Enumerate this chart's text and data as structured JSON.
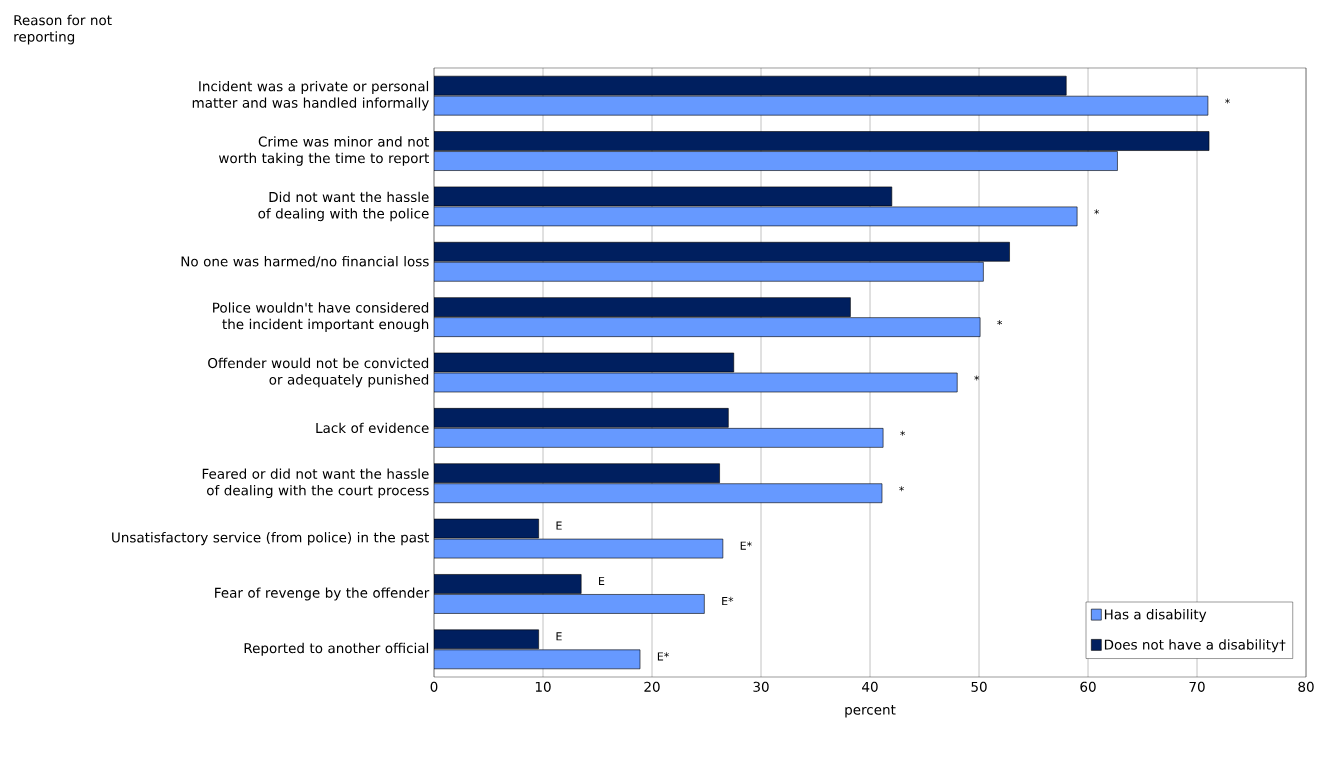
{
  "chart_data": {
    "type": "bar",
    "orientation": "horizontal",
    "ylabel": "Reason for not reporting",
    "xlabel": "percent",
    "categories": [
      "Incident was a private or personal matter and was handled informally",
      "Crime was minor and not worth taking the time to report",
      "Did not want the hassle of dealing with the police",
      "No one was harmed/no financial loss",
      "Police wouldn't have considered the incident important enough",
      "Offender would not be convicted or adequately punished",
      "Lack of evidence",
      "Feared or did not want the hassle of dealing with the court process",
      "Unsatisfactory service (from police) in the past",
      "Fear of revenge by the offender",
      "Reported to another official"
    ],
    "series": [
      {
        "name": "Has a disability",
        "color": "#6699ff",
        "values": [
          71,
          62.7,
          59,
          50.4,
          50.1,
          48,
          41.2,
          41.1,
          26.5,
          24.8,
          18.9
        ],
        "value_labels": [
          "*",
          null,
          "*",
          null,
          "*",
          "*",
          "*",
          "*",
          "E*",
          "E*",
          "E*"
        ]
      },
      {
        "name": "Does not have a disability†",
        "color": "#001f5f",
        "values": [
          58,
          71.1,
          42,
          52.8,
          38.2,
          27.5,
          27,
          26.2,
          9.6,
          13.5,
          9.6
        ],
        "value_labels": [
          null,
          null,
          null,
          null,
          null,
          null,
          null,
          null,
          "E",
          "E",
          "E"
        ]
      }
    ],
    "xlim": [
      0,
      80
    ],
    "xticks": [
      0,
      10,
      20,
      30,
      40,
      50,
      60,
      70,
      80
    ],
    "grid": "x",
    "legend": "bottom right"
  }
}
